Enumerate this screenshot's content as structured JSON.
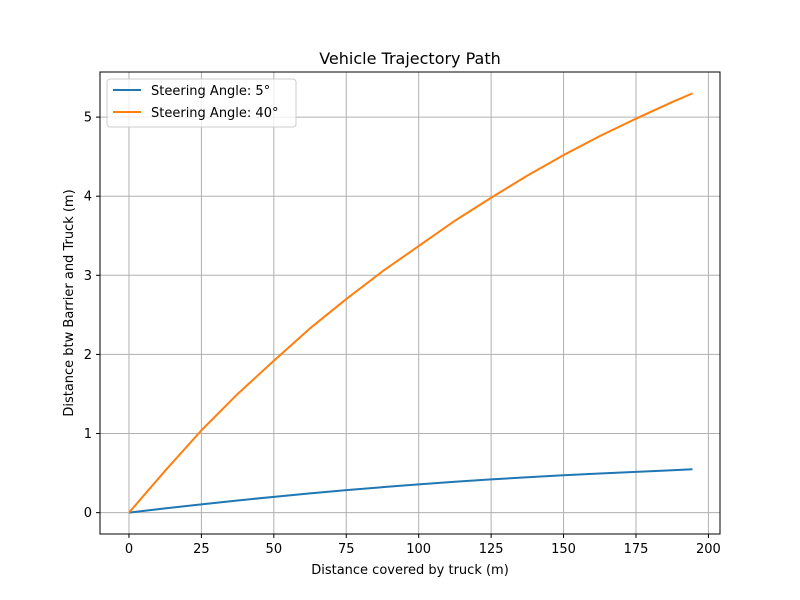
{
  "chart_data": {
    "type": "line",
    "title": "Vehicle Trajectory Path",
    "xlabel": "Distance covered by truck (m)",
    "ylabel": "Distance btw Barrier and Truck (m)",
    "xlim": [
      -10,
      204
    ],
    "ylim": [
      -0.27,
      5.57
    ],
    "xticks": [
      0,
      25,
      50,
      75,
      100,
      125,
      150,
      175,
      200
    ],
    "yticks": [
      0,
      1,
      2,
      3,
      4,
      5
    ],
    "grid": true,
    "legend_position": "top-left",
    "series": [
      {
        "name": "Steering Angle: 5°",
        "color": "#1f77b4",
        "x": [
          0,
          12.5,
          25,
          37.5,
          50,
          62.5,
          75,
          87.5,
          100,
          112.5,
          125,
          137.5,
          150,
          162.5,
          175,
          187.5,
          194.5
        ],
        "y": [
          0,
          0.054,
          0.105,
          0.154,
          0.2,
          0.243,
          0.284,
          0.322,
          0.357,
          0.39,
          0.42,
          0.447,
          0.472,
          0.495,
          0.516,
          0.536,
          0.549
        ]
      },
      {
        "name": "Steering Angle: 40°",
        "color": "#ff7f0e",
        "x": [
          0,
          12.5,
          25,
          37.5,
          50,
          62.5,
          75,
          87.5,
          100,
          112.5,
          125,
          137.5,
          150,
          162.5,
          175,
          187.5,
          194.5
        ],
        "y": [
          0,
          0.53,
          1.04,
          1.5,
          1.92,
          2.33,
          2.7,
          3.05,
          3.37,
          3.69,
          3.98,
          4.26,
          4.52,
          4.76,
          4.98,
          5.19,
          5.3
        ]
      }
    ]
  }
}
